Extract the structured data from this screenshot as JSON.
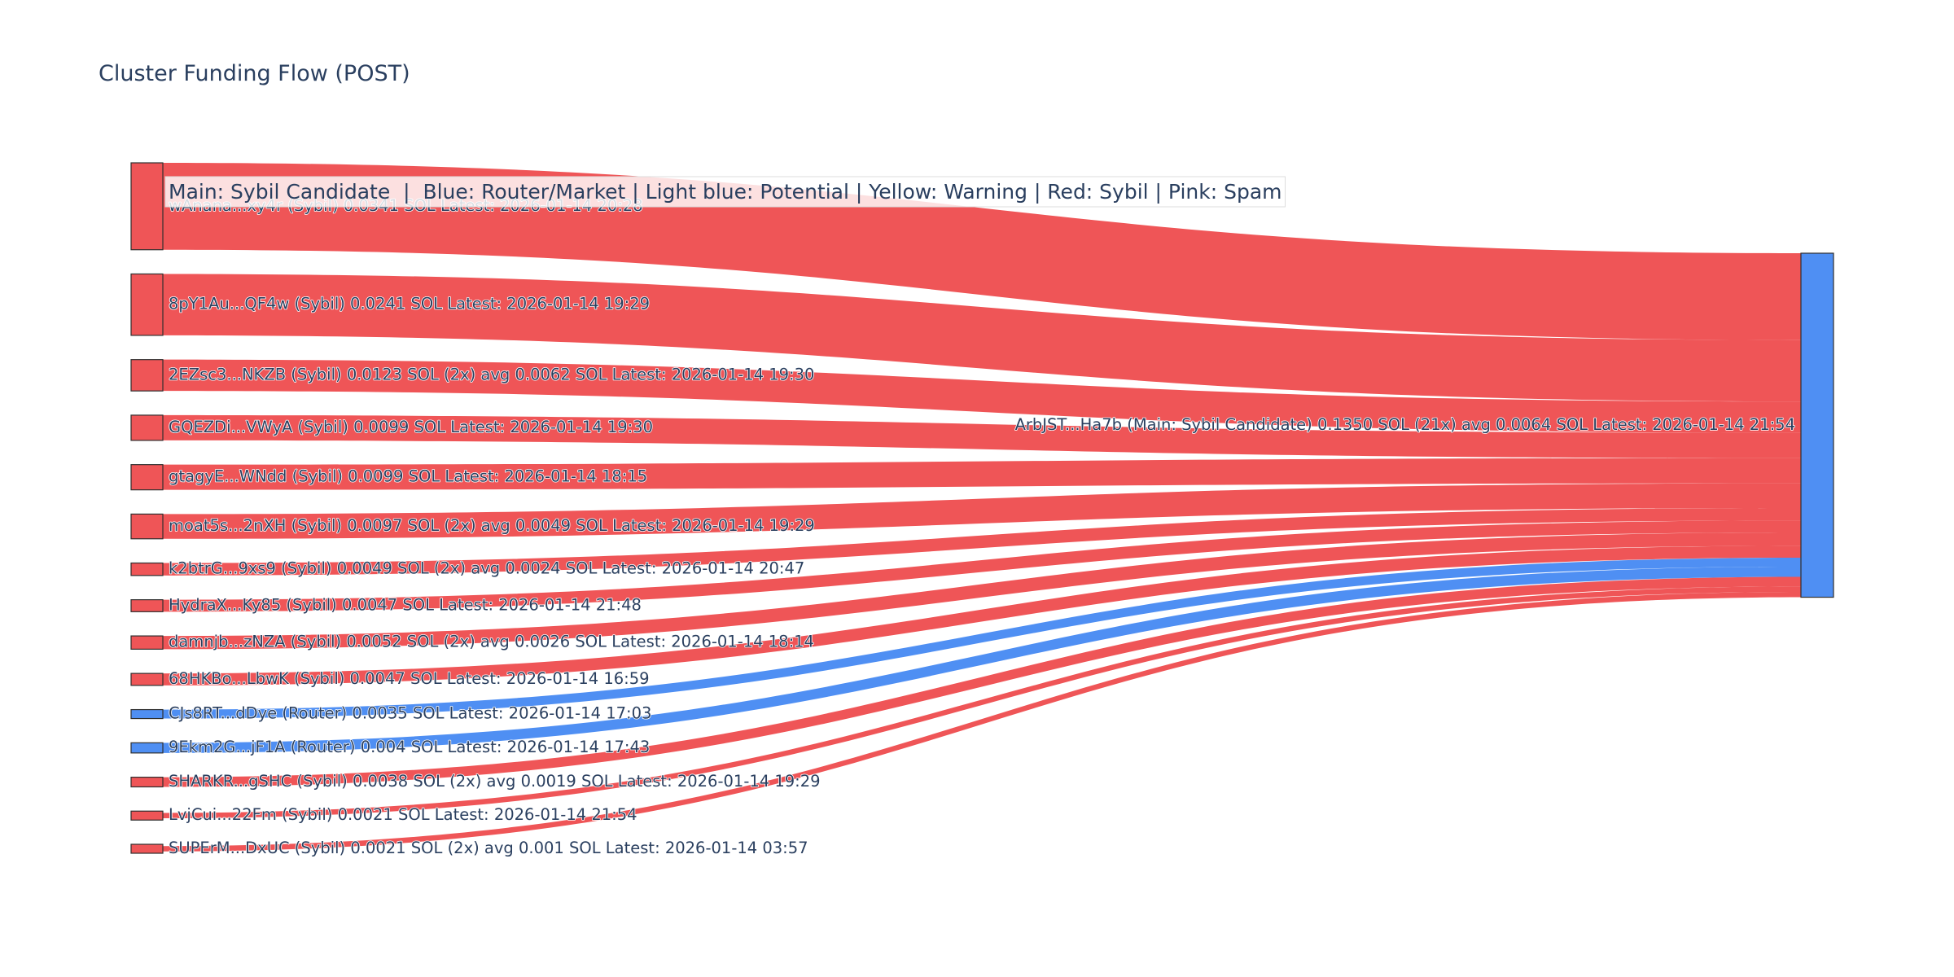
{
  "chart_data": {
    "type": "sankey",
    "title": "Cluster Funding Flow (POST)",
    "annotation": "Main: Sybil Candidate  |  Blue: Router/Market | Light blue: Potential | Yellow: Warning | Red: Sybil | Pink: Spam",
    "colors": {
      "sybil": "#ef5557",
      "router": "#4f8ff3",
      "main": "#4f8ff3"
    },
    "target": {
      "label": "ArbJST...Ha7b (Main: Sybil Candidate) 0.1350 SOL (21x) avg 0.0064 SOL Latest: 2026-01-14 21:54",
      "value": 0.135,
      "category": "main"
    },
    "sources": [
      {
        "label": "wAnana...xy4r (Sybil) 0.0341 SOL Latest: 2026-01-14 20:28",
        "value": 0.0341,
        "category": "sybil"
      },
      {
        "label": "8pY1Au...QF4w (Sybil) 0.0241 SOL Latest: 2026-01-14 19:29",
        "value": 0.0241,
        "category": "sybil"
      },
      {
        "label": "2EZsc3...NKZB (Sybil) 0.0123 SOL (2x) avg 0.0062 SOL Latest: 2026-01-14 19:30",
        "value": 0.0123,
        "category": "sybil"
      },
      {
        "label": "GQEZDi...VWyA (Sybil) 0.0099 SOL Latest: 2026-01-14 19:30",
        "value": 0.0099,
        "category": "sybil"
      },
      {
        "label": "gtagyE...WNdd (Sybil) 0.0099 SOL Latest: 2026-01-14 18:15",
        "value": 0.0099,
        "category": "sybil"
      },
      {
        "label": "moat5s...2nXH (Sybil) 0.0097 SOL (2x) avg 0.0049 SOL Latest: 2026-01-14 19:29",
        "value": 0.0097,
        "category": "sybil"
      },
      {
        "label": "k2btrG...9xs9 (Sybil) 0.0049 SOL (2x) avg 0.0024 SOL Latest: 2026-01-14 20:47",
        "value": 0.0049,
        "category": "sybil"
      },
      {
        "label": "HydraX...Ky85 (Sybil) 0.0047 SOL Latest: 2026-01-14 21:48",
        "value": 0.0047,
        "category": "sybil"
      },
      {
        "label": "damnjb...zNZA (Sybil) 0.0052 SOL (2x) avg 0.0026 SOL Latest: 2026-01-14 18:14",
        "value": 0.0052,
        "category": "sybil"
      },
      {
        "label": "68HKBo...LbwK (Sybil) 0.0047 SOL Latest: 2026-01-14 16:59",
        "value": 0.0047,
        "category": "sybil"
      },
      {
        "label": "CJs8RT...dDye (Router) 0.0035 SOL Latest: 2026-01-14 17:03",
        "value": 0.0035,
        "category": "router"
      },
      {
        "label": "9Ekm2G...jF1A (Router) 0.004 SOL Latest: 2026-01-14 17:43",
        "value": 0.004,
        "category": "router"
      },
      {
        "label": "SHARKR...gSHC (Sybil) 0.0038 SOL (2x) avg 0.0019 SOL Latest: 2026-01-14 19:29",
        "value": 0.0038,
        "category": "sybil"
      },
      {
        "label": "LvjCui...22Fm (Sybil) 0.0021 SOL Latest: 2026-01-14 21:54",
        "value": 0.0021,
        "category": "sybil"
      },
      {
        "label": "SUPErM...DxUC (Sybil) 0.0021 SOL (2x) avg 0.001 SOL Latest: 2026-01-14 03:57",
        "value": 0.0021,
        "category": "sybil"
      }
    ]
  }
}
